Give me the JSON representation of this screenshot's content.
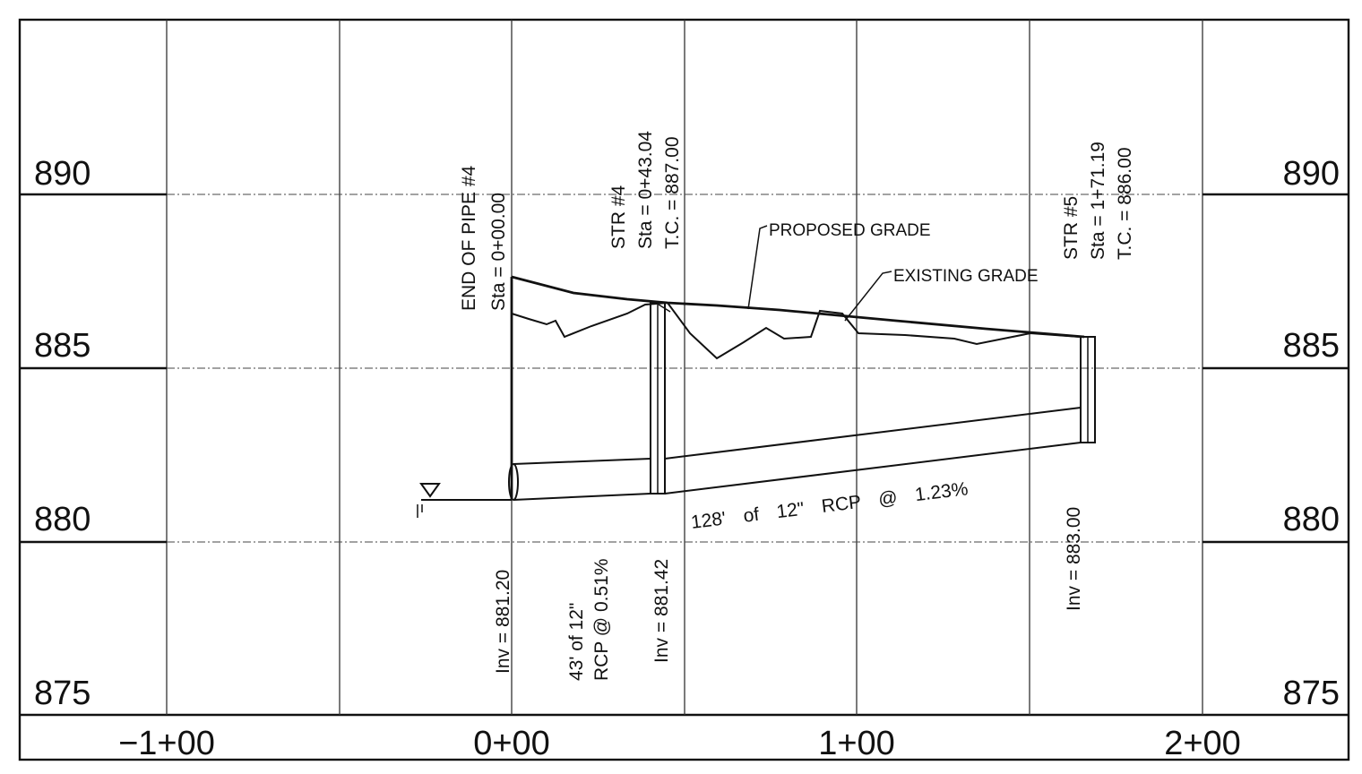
{
  "elevations": {
    "e890": "890",
    "e885": "885",
    "e880": "880",
    "e875": "875"
  },
  "stations": {
    "s_m100": "−1+00",
    "s_000": "0+00",
    "s_100": "1+00",
    "s_200": "2+00"
  },
  "labels": {
    "end_pipe_line1": "END OF PIPE #4",
    "end_pipe_line2": "Sta = 0+00.00",
    "str4_line1": "STR #4",
    "str4_line2": "Sta = 0+43.04",
    "str4_line3": "T.C. = 887.00",
    "str5_line1": "STR #5",
    "str5_line2": "Sta = 1+71.19",
    "str5_line3": "T.C. = 886.00",
    "proposed_grade": "PROPOSED GRADE",
    "existing_grade": "EXISTING GRADE",
    "inv1": "Inv = 881.20",
    "pipe1_line1": "43' of 12\"",
    "pipe1_line2": "RCP @ 0.51%",
    "inv2": "Inv = 881.42",
    "pipe2": "128' of 12\" RCP @ 1.23%",
    "inv3": "Inv = 883.00"
  },
  "colors": {
    "ink": "#111111",
    "paper": "#ffffff"
  }
}
